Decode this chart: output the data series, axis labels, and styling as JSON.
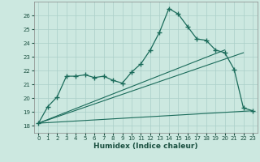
{
  "xlabel": "Humidex (Indice chaleur)",
  "bg_color": "#cce8e0",
  "grid_color": "#aacfc8",
  "line_color": "#1a6b5a",
  "xlim": [
    -0.5,
    23.5
  ],
  "ylim": [
    17.5,
    27.0
  ],
  "xticks": [
    0,
    1,
    2,
    3,
    4,
    5,
    6,
    7,
    8,
    9,
    10,
    11,
    12,
    13,
    14,
    15,
    16,
    17,
    18,
    19,
    20,
    21,
    22,
    23
  ],
  "yticks": [
    18,
    19,
    20,
    21,
    22,
    23,
    24,
    25,
    26
  ],
  "line1_x": [
    0,
    1,
    2,
    3,
    4,
    5,
    6,
    7,
    8,
    9,
    10,
    11,
    12,
    13,
    14,
    15,
    16,
    17,
    18,
    19,
    20,
    21,
    22,
    23
  ],
  "line1_y": [
    18.2,
    19.4,
    20.1,
    21.6,
    21.6,
    21.7,
    21.5,
    21.6,
    21.3,
    21.1,
    21.9,
    22.5,
    23.5,
    24.8,
    26.5,
    26.1,
    25.2,
    24.3,
    24.2,
    23.5,
    23.3,
    22.1,
    19.3,
    19.1
  ],
  "line2_x": [
    0,
    22
  ],
  "line2_y": [
    18.2,
    23.3
  ],
  "line3_x": [
    0,
    23
  ],
  "line3_y": [
    18.2,
    19.1
  ],
  "line4_x": [
    0,
    20
  ],
  "line4_y": [
    18.2,
    23.5
  ]
}
